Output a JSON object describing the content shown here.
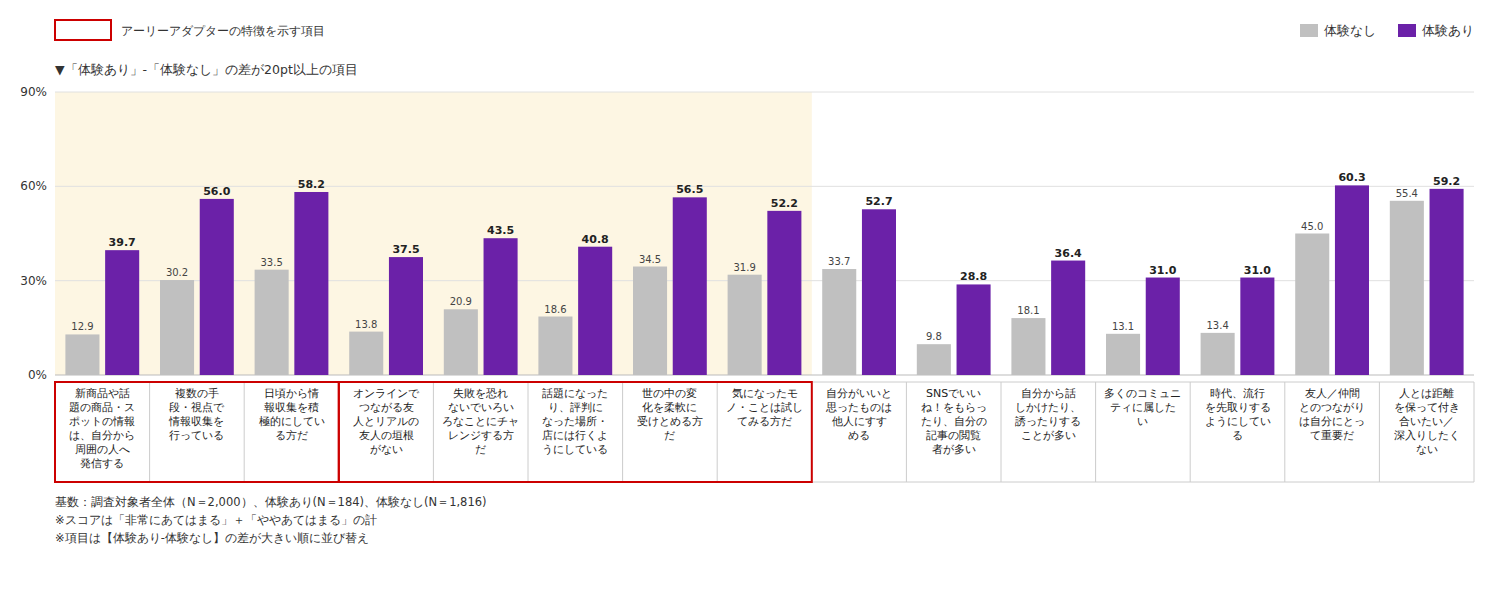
{
  "chart_data": {
    "type": "bar",
    "categories": [
      "新商品や話\n題の商品・ス\nポットの情報\nは、自分から\n周囲の人へ\n発信する",
      "複数の手\n段・視点で\n情報収集を\n行っている",
      "日頃から情\n報収集を積\n極的にしてい\nる方だ",
      "オンラインで\nつながる友\n人とリアルの\n友人の垣根\nがない",
      "失敗を恐れ\nないでいろい\nろなことにチャ\nレンジする方\nだ",
      "話題になった\nり、評判に\nなった場所・\n店には行くよ\nうにしている",
      "世の中の変\n化を柔軟に\n受けとめる方\nだ",
      "気になったモ\nノ・ことは試し\nてみる方だ",
      "自分がいいと\n思ったものは\n他人にすす\nめる",
      "SNSでいい\nね！をもらっ\nたり、自分の\n記事の閲覧\n者が多い",
      "自分から話\nしかけたり、\n誘ったりする\nことが多い",
      "多くのコミュニ\nティに属した\nい",
      "時代、流行\nを先取りする\nようにしてい\nる",
      "友人／仲間\nとのつながり\nは自分にとっ\nて重要だ",
      "人とは距離\nを保って付き\n合いたい／\n深入りしたく\nない"
    ],
    "series": [
      {
        "name": "体験なし",
        "color": "#c0c0c0",
        "values": [
          12.9,
          30.2,
          33.5,
          13.8,
          20.9,
          18.6,
          34.5,
          31.9,
          33.7,
          9.8,
          18.1,
          13.1,
          13.4,
          45.0,
          55.4
        ],
        "value_labels": [
          "12.9",
          "30.2",
          "33.5",
          "13.8",
          "20.9",
          "18.6",
          "34.5",
          "31.9",
          "33.7",
          "9.8",
          "18.1",
          "13.1",
          "13.4",
          "45.0",
          "55.4"
        ]
      },
      {
        "name": "体験あり",
        "color": "#6b21a8",
        "values": [
          39.7,
          56.0,
          58.2,
          37.5,
          43.5,
          40.8,
          56.5,
          52.2,
          52.7,
          28.8,
          36.4,
          31.0,
          31.0,
          60.3,
          59.2
        ],
        "value_labels": [
          "39.7",
          "56.0",
          "58.2",
          "37.5",
          "43.5",
          "40.8",
          "56.5",
          "52.2",
          "52.7",
          "28.8",
          "36.4",
          "31.0",
          "31.0",
          "60.3",
          "59.2"
        ]
      }
    ],
    "ylim": [
      0,
      90
    ],
    "yticks": [
      {
        "value": 0,
        "label": "0%"
      },
      {
        "value": 30,
        "label": "30%"
      },
      {
        "value": 60,
        "label": "60%"
      },
      {
        "value": 90,
        "label": "90%"
      }
    ],
    "grid": true,
    "legend": "upper right",
    "data_labels": true,
    "annotations": [
      {
        "text": "アーリーアダプターの特徴を示す項目",
        "groups": [
          [
            0,
            2
          ],
          [
            3,
            7
          ]
        ]
      },
      {
        "text": "▼「体験あり」-「体験なし」の差が20pt以上の項目"
      },
      {
        "text": "基数：調査対象者全体（N＝2,000）、体験あり(N＝184)、体験なし(N＝1,816)"
      },
      {
        "text": "※スコアは「非常にあてはまる」＋「ややあてはまる」の計"
      },
      {
        "text": "※項目は【体験あり-体験なし】の差が大きい順に並び替え"
      }
    ]
  }
}
